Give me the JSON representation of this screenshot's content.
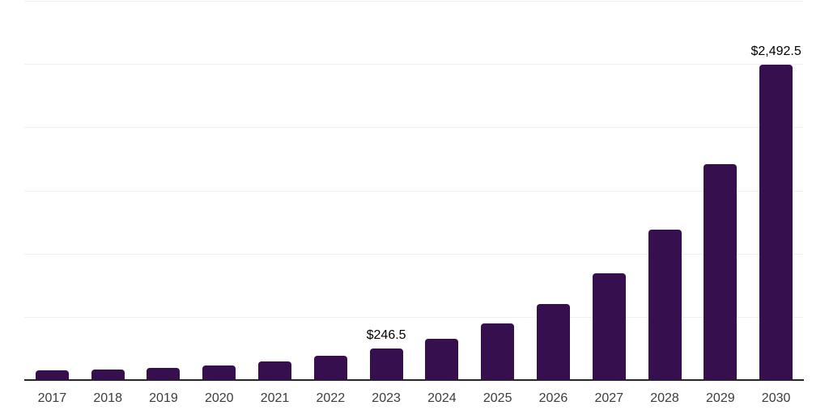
{
  "chart_data": {
    "type": "bar",
    "title": "",
    "xlabel": "",
    "ylabel": "",
    "categories": [
      "2017",
      "2018",
      "2019",
      "2020",
      "2021",
      "2022",
      "2023",
      "2024",
      "2025",
      "2026",
      "2027",
      "2028",
      "2029",
      "2030"
    ],
    "values": [
      76,
      83,
      98,
      117,
      146,
      190,
      246.5,
      327,
      446,
      604,
      842,
      1190,
      1706,
      2492.5
    ],
    "data_labels": {
      "2023": "$246.5",
      "2030": "$2,492.5"
    },
    "ylim": [
      0,
      3000
    ],
    "gridline_values": [
      500,
      1000,
      1500,
      2000,
      2500,
      3000
    ],
    "grid": "horizontal",
    "legend": "none",
    "colors": {
      "bar": "#36104e",
      "axis": "#262626",
      "gridline": "#f0f0f0",
      "value_label": "#000000",
      "tick_label": "#3c3c3c",
      "background": "#ffffff"
    }
  }
}
